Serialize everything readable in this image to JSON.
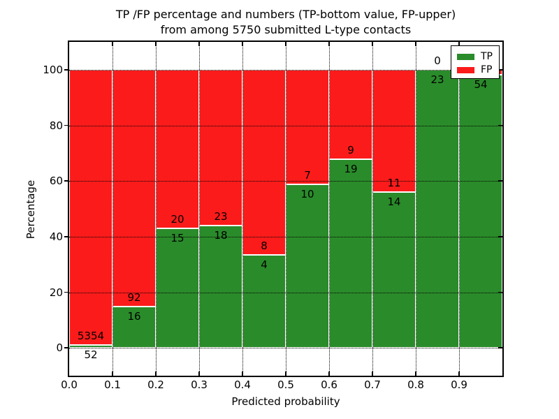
{
  "chart_data": {
    "type": "bar",
    "stacked": true,
    "title_line1": "TP /FP percentage and numbers (TP-bottom value, FP-upper)",
    "title_line2": "from among 5750 submitted L-type contacts",
    "xlabel": "Predicted probability",
    "ylabel": "Percentage",
    "xlim": [
      0.0,
      1.0
    ],
    "ylim": [
      -10,
      110
    ],
    "x_tick_labels": [
      "0.0",
      "0.1",
      "0.2",
      "0.3",
      "0.4",
      "0.5",
      "0.6",
      "0.7",
      "0.8",
      "0.9"
    ],
    "y_tick_values": [
      0,
      20,
      40,
      60,
      80,
      100
    ],
    "grid": true,
    "bar_bin_width": 0.1,
    "total_contacts": 5750,
    "series": [
      {
        "name": "TP",
        "color": "#2a8b2a"
      },
      {
        "name": "FP",
        "color": "#fb1b1b"
      }
    ],
    "bins": [
      {
        "range": [
          0.0,
          0.1
        ],
        "tp": 52,
        "fp": 5354,
        "tp_label": "52",
        "fp_label": "5354"
      },
      {
        "range": [
          0.1,
          0.2
        ],
        "tp": 16,
        "fp": 92,
        "tp_label": "16",
        "fp_label": "92"
      },
      {
        "range": [
          0.2,
          0.3
        ],
        "tp": 15,
        "fp": 20,
        "tp_label": "15",
        "fp_label": "20"
      },
      {
        "range": [
          0.3,
          0.4
        ],
        "tp": 18,
        "fp": 23,
        "tp_label": "18",
        "fp_label": "23"
      },
      {
        "range": [
          0.4,
          0.5
        ],
        "tp": 4,
        "fp": 8,
        "tp_label": "4",
        "fp_label": "8"
      },
      {
        "range": [
          0.5,
          0.6
        ],
        "tp": 10,
        "fp": 7,
        "tp_label": "10",
        "fp_label": "7"
      },
      {
        "range": [
          0.6,
          0.7
        ],
        "tp": 19,
        "fp": 9,
        "tp_label": "19",
        "fp_label": "9"
      },
      {
        "range": [
          0.7,
          0.8
        ],
        "tp": 14,
        "fp": 11,
        "tp_label": "14",
        "fp_label": "11"
      },
      {
        "range": [
          0.8,
          0.9
        ],
        "tp": 23,
        "fp": 0,
        "tp_label": "23",
        "fp_label": "0"
      },
      {
        "range": [
          0.9,
          1.0
        ],
        "tp": 54,
        "fp": 1,
        "tp_label": "54",
        "fp_label": ""
      }
    ],
    "legend": {
      "position": "upper-right",
      "items": [
        "TP",
        "FP"
      ]
    }
  }
}
